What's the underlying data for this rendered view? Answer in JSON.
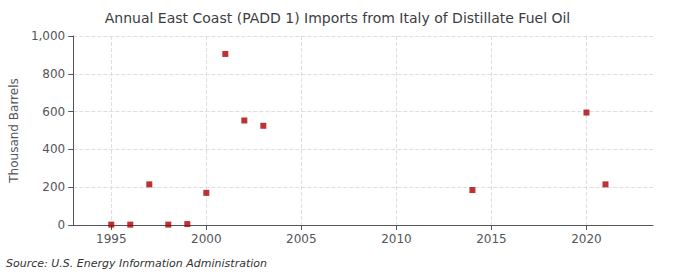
{
  "chart_data": {
    "type": "scatter",
    "title": "Annual East Coast (PADD 1) Imports from Italy of Distillate Fuel Oil",
    "ylabel": "Thousand Barrels",
    "source": "Source: U.S. Energy Information Administration",
    "x": [
      1995,
      1996,
      1997,
      1998,
      1999,
      2000,
      2001,
      2002,
      2003,
      2014,
      2020,
      2021
    ],
    "values": [
      2,
      2,
      215,
      2,
      5,
      170,
      905,
      553,
      525,
      185,
      595,
      215
    ],
    "color": "#aa0000",
    "marker": "square",
    "xlim": [
      1993.0,
      2023.5
    ],
    "ylim": [
      0,
      1000
    ],
    "xticks": [
      1995,
      2000,
      2005,
      2010,
      2015,
      2020
    ],
    "yticks": [
      0,
      200,
      400,
      600,
      800,
      {
        "value": 1000,
        "label": "1,000"
      }
    ],
    "grid": true
  }
}
